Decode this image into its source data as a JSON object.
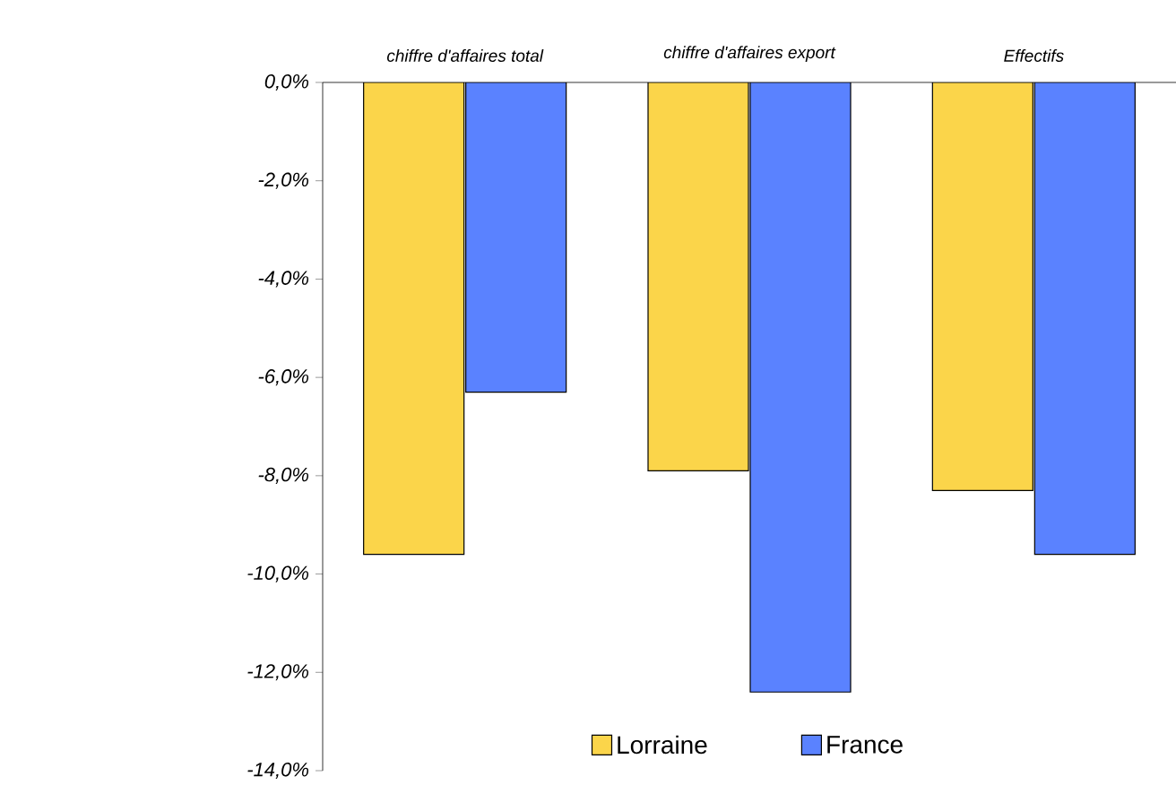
{
  "chart_data": {
    "type": "bar",
    "categories": [
      "chiffre d'affaires total",
      "chiffre d'affaires export",
      "Effectifs"
    ],
    "series": [
      {
        "name": "Lorraine",
        "color": "#fbd54a",
        "values": [
          -9.6,
          -7.9,
          -8.3
        ]
      },
      {
        "name": "France",
        "color": "#5a82ff",
        "values": [
          -6.3,
          -12.4,
          -9.6
        ]
      }
    ],
    "ylim": [
      -14,
      0
    ],
    "yticks": [
      {
        "value": 0,
        "label": "0,0%"
      },
      {
        "value": -2,
        "label": "-2,0%"
      },
      {
        "value": -4,
        "label": "-4,0%"
      },
      {
        "value": -6,
        "label": "-6,0%"
      },
      {
        "value": -8,
        "label": "-8,0%"
      },
      {
        "value": -10,
        "label": "-10,0%"
      },
      {
        "value": -12,
        "label": "-12,0%"
      },
      {
        "value": -14,
        "label": "-14,0%"
      }
    ],
    "grid": false,
    "legend": "bottom"
  }
}
